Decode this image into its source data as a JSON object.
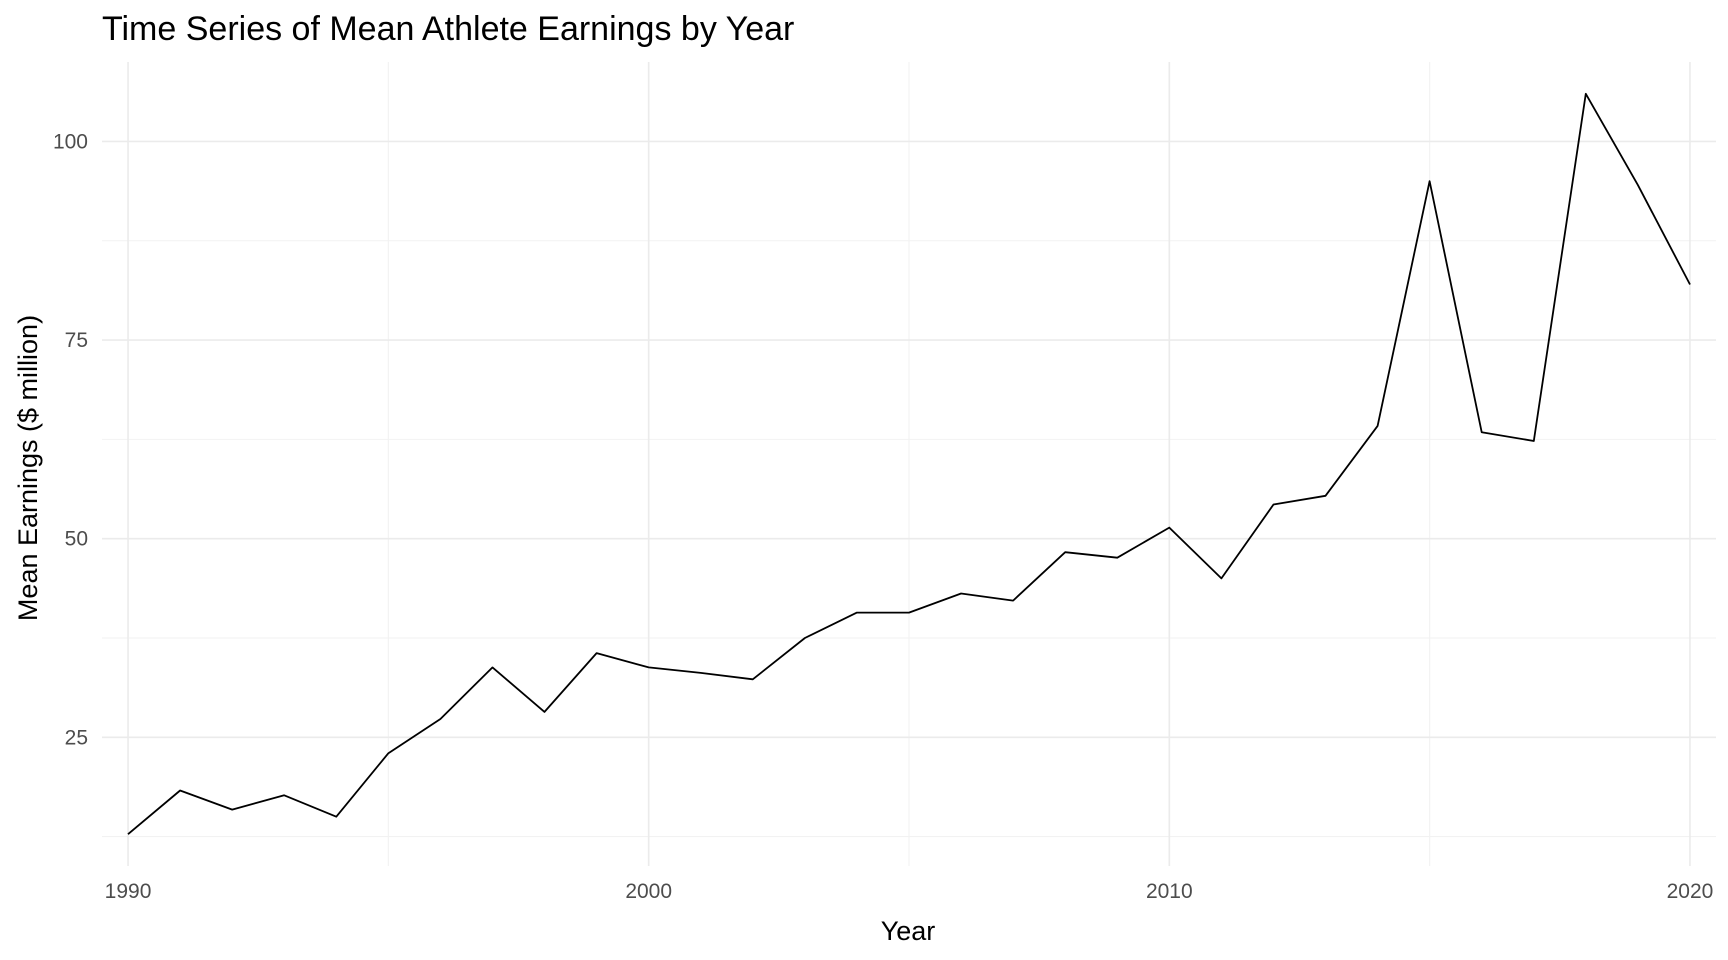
{
  "chart_data": {
    "type": "line",
    "title": "Time Series of Mean Athlete Earnings by Year",
    "xlabel": "Year",
    "ylabel": "Mean Earnings ($ million)",
    "xlim": [
      1989.5,
      2020.5
    ],
    "ylim": [
      8.8,
      110
    ],
    "x_ticks": [
      1990,
      2000,
      2010,
      2020
    ],
    "y_ticks": [
      25,
      50,
      75,
      100
    ],
    "grid": true,
    "legend": "none",
    "line_color": "#000000",
    "x": [
      1990,
      1991,
      1992,
      1993,
      1994,
      1995,
      1996,
      1997,
      1998,
      1999,
      2000,
      2001,
      2002,
      2003,
      2004,
      2005,
      2006,
      2007,
      2008,
      2009,
      2010,
      2011,
      2012,
      2013,
      2014,
      2015,
      2016,
      2017,
      2018,
      2019,
      2020
    ],
    "y": [
      12.8,
      18.3,
      15.9,
      17.7,
      15.0,
      23.0,
      27.3,
      33.8,
      28.2,
      35.6,
      33.8,
      33.1,
      32.3,
      37.5,
      40.7,
      40.7,
      43.1,
      42.2,
      48.3,
      47.6,
      51.4,
      45.0,
      54.3,
      55.4,
      64.2,
      95.0,
      63.4,
      62.3,
      106.0,
      94.5,
      82.0
    ]
  }
}
